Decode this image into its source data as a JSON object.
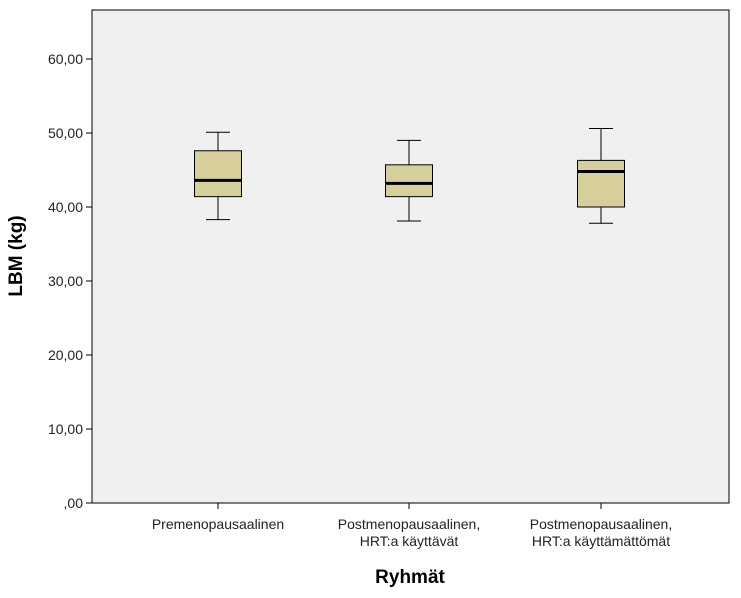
{
  "chart_data": {
    "type": "boxplot",
    "xlabel": "Ryhmät",
    "ylabel": "LBM (kg)",
    "ylim": [
      0,
      65
    ],
    "yticks": [
      0,
      10,
      20,
      30,
      40,
      50,
      60
    ],
    "ytick_labels": [
      ",00",
      "10,00",
      "20,00",
      "30,00",
      "40,00",
      "50,00",
      "60,00"
    ],
    "grid": false,
    "colors": {
      "box_fill": "#d6cf9c",
      "plot_bg": "#f0f0f0",
      "stroke": "#000000"
    },
    "categories": [
      {
        "lines": [
          "Premenopausaalinen"
        ]
      },
      {
        "lines": [
          "Postmenopausaalinen,",
          "HRT:a käyttävät"
        ]
      },
      {
        "lines": [
          "Postmenopausaalinen,",
          "HRT:a käyttämättömät"
        ]
      }
    ],
    "boxes": [
      {
        "min": 38.3,
        "q1": 41.4,
        "median": 43.6,
        "q3": 47.6,
        "max": 50.1
      },
      {
        "min": 38.1,
        "q1": 41.4,
        "median": 43.2,
        "q3": 45.7,
        "max": 49.0
      },
      {
        "min": 37.8,
        "q1": 40.0,
        "median": 44.8,
        "q3": 46.3,
        "max": 50.6
      }
    ]
  }
}
